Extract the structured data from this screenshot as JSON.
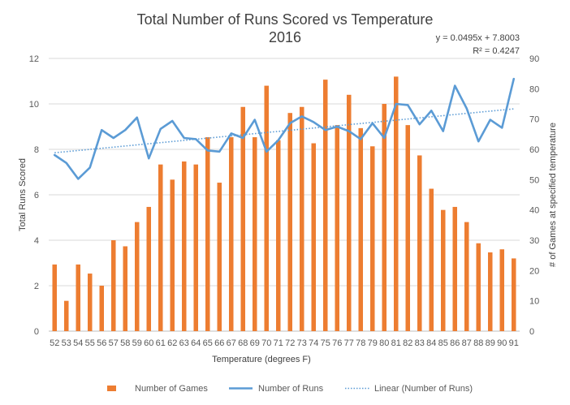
{
  "chart_data": {
    "type": "bar",
    "title": "Total Number of Runs Scored vs Temperature",
    "subtitle": "2016",
    "xlabel": "Temperature  (degrees F)",
    "ylabel": "Total Runs Scored",
    "y2label": "# of Games at specified temperature",
    "ylim": [
      0,
      12
    ],
    "y2lim": [
      0,
      90
    ],
    "yticks": [
      0,
      2,
      4,
      6,
      8,
      10,
      12
    ],
    "y2ticks": [
      0,
      10,
      20,
      30,
      40,
      50,
      60,
      70,
      80,
      90
    ],
    "grid": true,
    "legend_position": "bottom",
    "categories": [
      52,
      53,
      54,
      55,
      56,
      57,
      58,
      59,
      60,
      61,
      62,
      63,
      64,
      65,
      66,
      67,
      68,
      69,
      70,
      71,
      72,
      73,
      74,
      75,
      76,
      77,
      78,
      79,
      80,
      81,
      82,
      83,
      84,
      85,
      86,
      87,
      88,
      89,
      90,
      91
    ],
    "series": [
      {
        "name": "Number of Games",
        "type": "bar",
        "axis": "secondary",
        "color": "#ED7D31",
        "values": [
          22,
          10,
          22,
          19,
          15,
          30,
          28,
          36,
          41,
          55,
          50,
          56,
          55,
          64,
          49,
          64,
          74,
          64,
          81,
          63,
          72,
          74,
          62,
          83,
          68,
          78,
          67,
          61,
          75,
          84,
          68,
          58,
          47,
          40,
          41,
          36,
          29,
          26,
          27,
          24
        ]
      },
      {
        "name": "Number of Runs",
        "type": "line",
        "axis": "primary",
        "color": "#5B9BD5",
        "values": [
          7.75,
          7.4,
          6.7,
          7.2,
          8.85,
          8.5,
          8.85,
          9.4,
          7.6,
          8.9,
          9.25,
          8.5,
          8.45,
          7.95,
          7.9,
          8.7,
          8.5,
          9.3,
          7.9,
          8.4,
          9.15,
          9.45,
          9.2,
          8.85,
          9.0,
          8.8,
          8.45,
          9.15,
          8.5,
          10.0,
          9.95,
          9.1,
          9.7,
          8.8,
          10.8,
          9.8,
          8.35,
          9.3,
          8.95,
          11.1
        ]
      },
      {
        "name": "Linear (Number of Runs)",
        "type": "trendline",
        "axis": "primary",
        "color": "#5B9BD5",
        "equation": "y = 0.0495x + 7.8003",
        "r_squared": "R² = 0.4247",
        "slope": 0.0495,
        "intercept": 7.8003
      }
    ]
  }
}
